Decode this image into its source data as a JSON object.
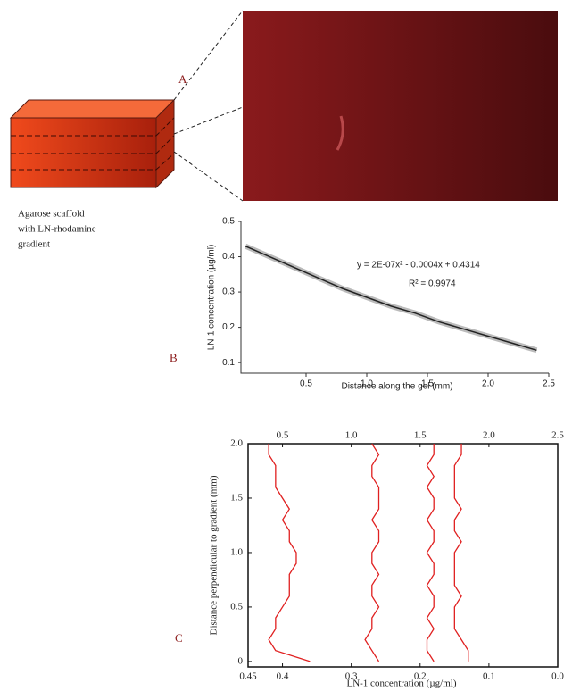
{
  "figure": {
    "panel_labels": [
      "A",
      "B",
      "C"
    ],
    "caption": [
      "Agarose scaffold",
      "with LN-rhodamine",
      "gradient"
    ]
  },
  "chart_data": [
    {
      "type": "line",
      "x_label": "Distance along the gel (mm)",
      "y_label": "LN-1 concentration (µg/ml)",
      "x": [
        0,
        0.2,
        0.4,
        0.6,
        0.8,
        1.0,
        1.2,
        1.4,
        1.6,
        1.8,
        2.0,
        2.2,
        2.4
      ],
      "values": [
        0.43,
        0.4,
        0.37,
        0.34,
        0.31,
        0.285,
        0.26,
        0.24,
        0.215,
        0.195,
        0.175,
        0.155,
        0.135
      ],
      "color": "#222222",
      "annotations": [
        "y = 2E-07x² - 0.0004x + 0.4314",
        "R² = 0.9974"
      ],
      "xlim": [
        0,
        2.5
      ],
      "xticks": [
        0.5,
        {
          "value": 1,
          "label": "1.0"
        },
        1.5,
        {
          "value": 2,
          "label": "2.0"
        },
        2.5
      ],
      "ylim": [
        0.07,
        0.5
      ],
      "yticks": [
        0.1,
        0.2,
        0.3,
        0.4,
        0.5
      ]
    },
    {
      "type": "vline",
      "x_label": "LN-1 concentration (µg/ml)",
      "y_label": "Distance perpendicular to gradient (mm)",
      "y": [
        0,
        0.1,
        0.2,
        0.3,
        0.4,
        0.5,
        0.6,
        0.7,
        0.8,
        0.9,
        1.0,
        1.1,
        1.2,
        1.3,
        1.4,
        1.5,
        1.6,
        1.7,
        1.8,
        1.9,
        2.0
      ],
      "series": [
        {
          "color": "#e02020",
          "values": [
            0.36,
            0.41,
            0.42,
            0.41,
            0.41,
            0.4,
            0.39,
            0.39,
            0.39,
            0.38,
            0.38,
            0.39,
            0.39,
            0.4,
            0.39,
            0.4,
            0.41,
            0.41,
            0.41,
            0.42,
            0.42
          ]
        },
        {
          "color": "#e02020",
          "values": [
            0.26,
            0.27,
            0.28,
            0.27,
            0.27,
            0.26,
            0.27,
            0.27,
            0.26,
            0.27,
            0.27,
            0.26,
            0.26,
            0.27,
            0.26,
            0.26,
            0.26,
            0.27,
            0.27,
            0.26,
            0.27
          ]
        },
        {
          "color": "#e02020",
          "values": [
            0.18,
            0.19,
            0.19,
            0.18,
            0.19,
            0.18,
            0.18,
            0.19,
            0.18,
            0.18,
            0.19,
            0.18,
            0.18,
            0.19,
            0.18,
            0.18,
            0.19,
            0.18,
            0.19,
            0.18,
            0.18
          ]
        },
        {
          "color": "#e02020",
          "values": [
            0.13,
            0.13,
            0.14,
            0.15,
            0.15,
            0.15,
            0.14,
            0.15,
            0.15,
            0.15,
            0.15,
            0.14,
            0.15,
            0.15,
            0.14,
            0.15,
            0.15,
            0.15,
            0.15,
            0.14,
            0.14
          ]
        }
      ],
      "xlim": [
        0.45,
        0
      ],
      "xticks": [
        0.45,
        0.4,
        0.3,
        0.2,
        0.1,
        {
          "value": 0,
          "label": "0.0"
        }
      ],
      "x2lim": [
        0.25,
        2.5
      ],
      "x2ticks": [
        0.5,
        {
          "value": 1,
          "label": "1.0"
        },
        1.5,
        {
          "value": 2,
          "label": "2.0"
        },
        2.5
      ],
      "ylim": [
        -0.05,
        2.0
      ],
      "yticks": [
        0,
        0.5,
        {
          "value": 1,
          "label": "1.0"
        },
        1.5,
        {
          "value": 2,
          "label": "2.0"
        }
      ]
    }
  ]
}
